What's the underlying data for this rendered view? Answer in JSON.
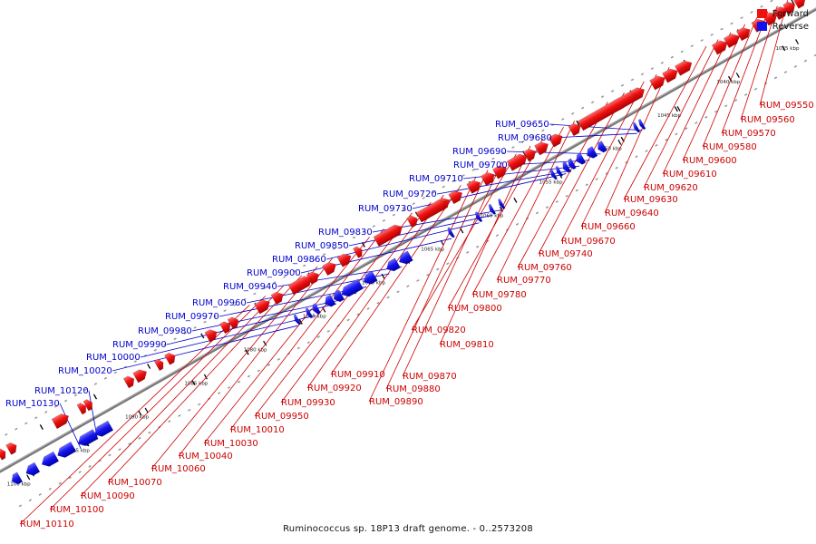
{
  "legend": {
    "forward": {
      "label": "Forward",
      "color": "#ee1111"
    },
    "reverse": {
      "label": "Reverse",
      "color": "#1111ee"
    }
  },
  "caption": "Ruminococcus sp. 18P13 draft genome. - 0..2573208",
  "scale": {
    "unit": "kbp",
    "ticks": [
      1035,
      1040,
      1045,
      1050,
      1055,
      1060,
      1065,
      1070,
      1075,
      1080,
      1085,
      1090,
      1095,
      1100
    ]
  },
  "genes": {
    "forward": [
      "RUM_09550",
      "RUM_09560",
      "RUM_09570",
      "RUM_09580",
      "RUM_09600",
      "RUM_09610",
      "RUM_09620",
      "RUM_09630",
      "RUM_09640",
      "RUM_09660",
      "RUM_09670",
      "RUM_09740",
      "RUM_09760",
      "RUM_09770",
      "RUM_09780",
      "RUM_09800",
      "RUM_09810",
      "RUM_09820",
      "RUM_09870",
      "RUM_09880",
      "RUM_09890",
      "RUM_09910",
      "RUM_09920",
      "RUM_09930",
      "RUM_09950",
      "RUM_10010",
      "RUM_10030",
      "RUM_10040",
      "RUM_10060",
      "RUM_10070",
      "RUM_10090",
      "RUM_10100",
      "RUM_10110"
    ],
    "reverse": [
      "RUM_09650",
      "RUM_09680",
      "RUM_09690",
      "RUM_09700",
      "RUM_09710",
      "RUM_09720",
      "RUM_09730",
      "RUM_09830",
      "RUM_09850",
      "RUM_09860",
      "RUM_09900",
      "RUM_09940",
      "RUM_09960",
      "RUM_09970",
      "RUM_09980",
      "RUM_09990",
      "RUM_10000",
      "RUM_10020",
      "RUM_10120",
      "RUM_10130"
    ]
  }
}
